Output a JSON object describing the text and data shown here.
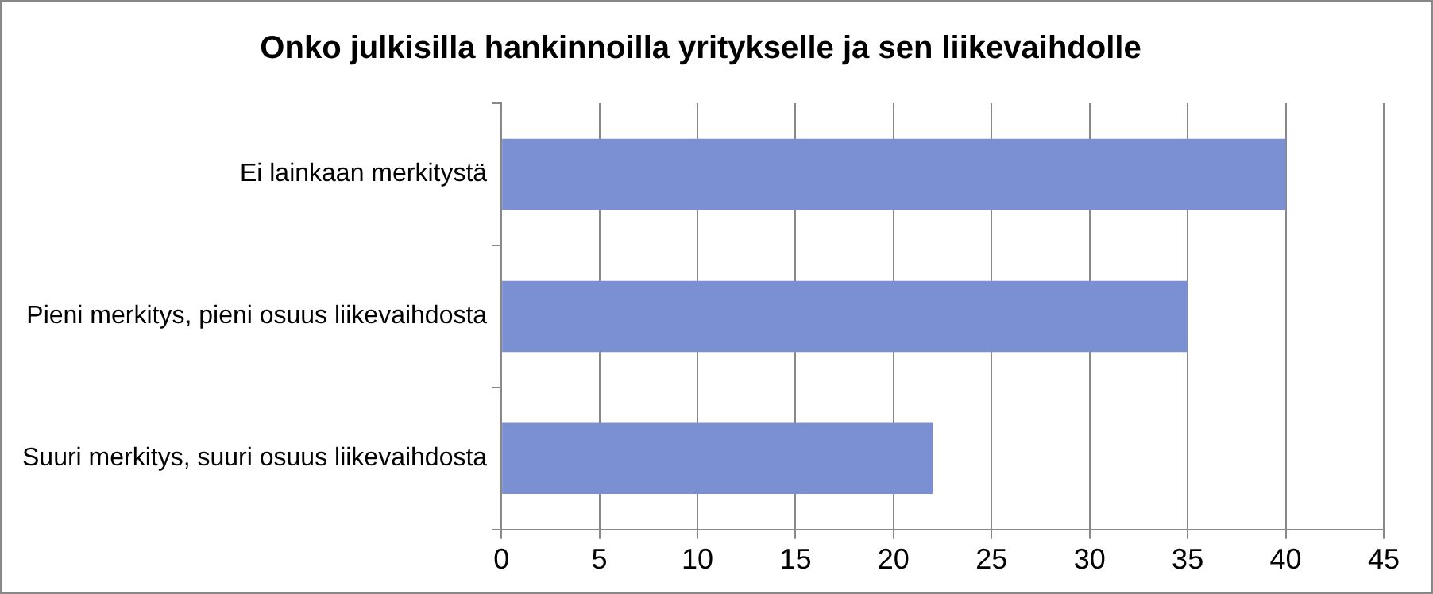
{
  "chart_data": {
    "type": "bar",
    "orientation": "horizontal",
    "title": "Onko julkisilla hankinnoilla yritykselle ja sen liikevaihdolle",
    "categories": [
      "Ei lainkaan merkitystä",
      "Pieni merkitys, pieni osuus liikevaihdosta",
      "Suuri merkitys, suuri osuus liikevaihdosta"
    ],
    "values": [
      40,
      35,
      22
    ],
    "color": "#7b8fd3",
    "xlim": [
      0,
      45
    ],
    "xticks": [
      0,
      5,
      10,
      15,
      20,
      25,
      30,
      35,
      40,
      45
    ],
    "grid": "x",
    "legend": false
  }
}
